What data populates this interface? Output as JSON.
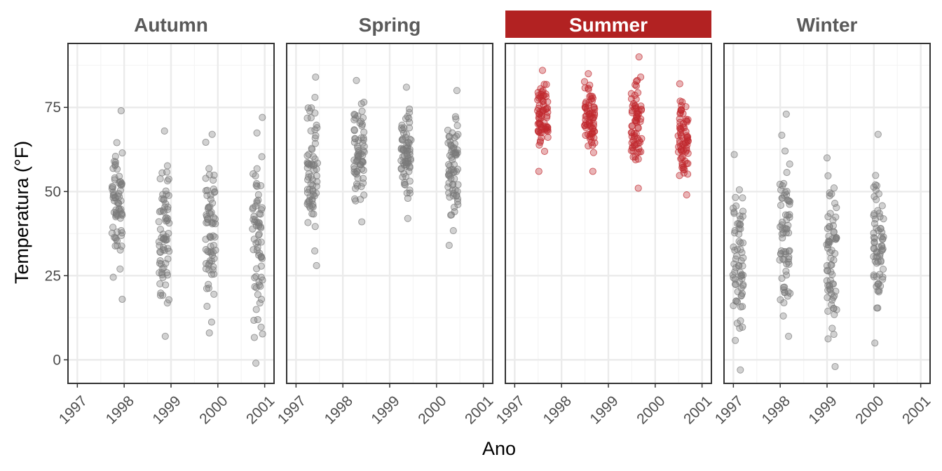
{
  "chart_data": {
    "type": "scatter",
    "xlabel": "Ano",
    "ylabel": "Temperatura (°F)",
    "xlim": [
      1996.8,
      2001.2
    ],
    "ylim": [
      -7,
      94
    ],
    "x_ticks": [
      "1997",
      "1998",
      "1999",
      "2000",
      "2001"
    ],
    "y_ticks": [
      "0",
      "25",
      "50",
      "75"
    ],
    "grid": true,
    "highlight_facet": "Summer",
    "colors": {
      "normal_point": "#7a7a7a",
      "highlight_point": "#c0282d",
      "normal_strip_text": "#5a5a5a",
      "highlight_strip_bg": "#b22222",
      "highlight_strip_text": "#ffffff",
      "panel_border": "#333333",
      "grid_major": "#ebebeb",
      "grid_minor": "#f5f5f5"
    },
    "facets": [
      {
        "name": "Autumn",
        "clusters": [
          {
            "year": 1997.85,
            "min": 18,
            "max": 74
          },
          {
            "year": 1998.85,
            "min": 7,
            "max": 68
          },
          {
            "year": 1999.85,
            "min": 8,
            "max": 67
          },
          {
            "year": 2000.85,
            "min": -1,
            "max": 72
          }
        ]
      },
      {
        "name": "Spring",
        "clusters": [
          {
            "year": 1997.35,
            "min": 28,
            "max": 84
          },
          {
            "year": 1998.35,
            "min": 41,
            "max": 83
          },
          {
            "year": 1999.35,
            "min": 42,
            "max": 81
          },
          {
            "year": 2000.35,
            "min": 34,
            "max": 80
          }
        ]
      },
      {
        "name": "Summer",
        "clusters": [
          {
            "year": 1997.6,
            "min": 56,
            "max": 86
          },
          {
            "year": 1998.6,
            "min": 56,
            "max": 85
          },
          {
            "year": 1999.6,
            "min": 51,
            "max": 90
          },
          {
            "year": 2000.6,
            "min": 49,
            "max": 82
          }
        ]
      },
      {
        "name": "Winter",
        "clusters": [
          {
            "year": 1997.1,
            "min": -3,
            "max": 61
          },
          {
            "year": 1998.1,
            "min": 7,
            "max": 73
          },
          {
            "year": 1999.1,
            "min": -2,
            "max": 60
          },
          {
            "year": 2000.1,
            "min": 5,
            "max": 67
          }
        ]
      }
    ]
  }
}
